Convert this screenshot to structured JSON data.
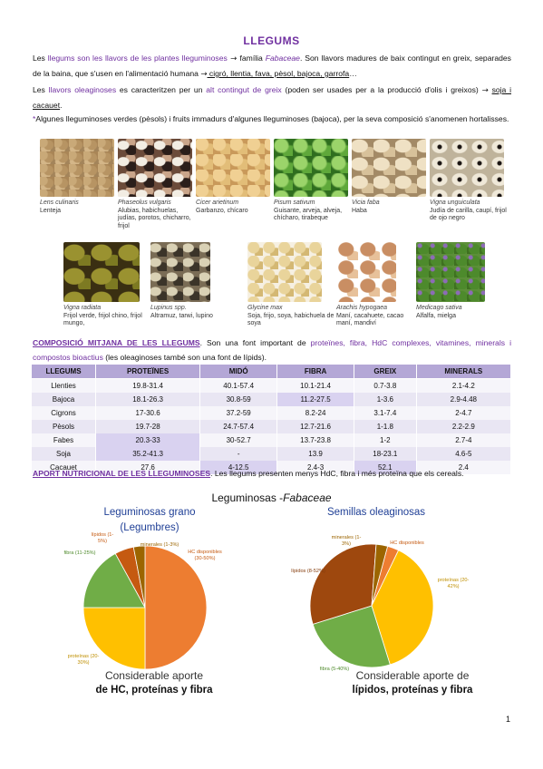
{
  "title": "LLEGUMS",
  "intro": {
    "p1_a": "Les ",
    "p1_b": "llegums son les llavors de les plantes lleguminoses",
    "p1_arrow": " → ",
    "p1_c": "família ",
    "p1_d": "Fabaceae",
    "p1_e": ". Son llavors madures de baix contingut en greix, separades de la baina, que s'usen en l'alimentació humana ",
    "p1_f": "→",
    "p1_g": " cigró, llentia, fava, pèsol, bajoca, garrofa",
    "p1_h": "…",
    "p2_a": "Les ",
    "p2_b": "llavors oleaginoses",
    "p2_c": " es caracteritzen per un ",
    "p2_d": "alt contingut de greix",
    "p2_e": " (poden ser usades per a la producció d'olis i greixos) ",
    "p2_f": "→",
    "p2_g": "soja i cacauet",
    "p2_h": ".",
    "p3_a": "*",
    "p3_b": "Algunes lleguminoses verdes (pèsols) i fruits immadurs d'algunes lleguminoses (bajoca), per la seva composició s'anomenen hortalisses."
  },
  "legumes_row1": [
    {
      "sci": "Lens culinaris",
      "common": "Lenteja",
      "icon": "lentil-image"
    },
    {
      "sci": "Phaseolus vulgaris",
      "common": "Alubias, habichuelas, judías, porotos, chicharro, frijol",
      "icon": "bean-image"
    },
    {
      "sci": "Cicer arietinum",
      "common": "Garbanzo, chícaro",
      "icon": "chickpea-image"
    },
    {
      "sci": "Pisum sativum",
      "common": "Guisante, arveja, alveja, chícharo, tirabeque",
      "icon": "pea-image"
    },
    {
      "sci": "Vicia faba",
      "common": "Haba",
      "icon": "broad-bean-image"
    },
    {
      "sci": "Vigna unguiculata",
      "common": "Judía de carilla, caupí, frijol de ojo negro",
      "icon": "blackeyed-pea-image"
    }
  ],
  "legumes_row2": [
    {
      "sci": "Vigna radiata",
      "common": "Frijol verde, frijol chino, frijol mungo,",
      "icon": "mung-bean-image"
    },
    {
      "sci": "Lupinus spp.",
      "common": "Altramuz, tarwi, lupino",
      "icon": "lupin-image"
    },
    {
      "sci": "Glycine max",
      "common": "Soja, frijo, soya, habichuela de soya",
      "icon": "soybean-image"
    },
    {
      "sci": "Arachis hypogaea",
      "common": "Maní, cacahuete, cacao maní, mandiví",
      "icon": "peanut-image"
    },
    {
      "sci": "Medicago sativa",
      "common": "Alfalfa, mielga",
      "icon": "alfalfa-image"
    }
  ],
  "composition": {
    "heading": "COMPOSICIÓ MITJANA DE LES LLEGUMS",
    "text_a": ". Son una font important de ",
    "text_b": "proteïnes, fibra, HdC complexes, vitamines, minerals i compostos bioactius",
    "text_c": " (les oleaginoses també son una font de lípids)",
    "text_d": "."
  },
  "table": {
    "headers": [
      "LLEGUMS",
      "PROTEÏNES",
      "MIDÓ",
      "FIBRA",
      "GREIX",
      "MINERALS"
    ],
    "rows": [
      [
        "Llenties",
        "19.8-31.4",
        "40.1-57.4",
        "10.1-21.4",
        "0.7-3.8",
        "2.1-4.2"
      ],
      [
        "Bajoca",
        "18.1-26.3",
        "30.8-59",
        "11.2-27.5",
        "1-3.6",
        "2.9-4.48"
      ],
      [
        "Cigrons",
        "17-30.6",
        "37.2-59",
        "8.2-24",
        "3.1-7.4",
        "2-4.7"
      ],
      [
        "Pèsols",
        "19.7-28",
        "24.7-57.4",
        "12.7-21.6",
        "1-1.8",
        "2.2-2.9"
      ],
      [
        "Fabes",
        "20.3-33",
        "30-52.7",
        "13.7-23.8",
        "1-2",
        "2.7-4"
      ],
      [
        "Soja",
        "35.2-41.3",
        "-",
        "13.9",
        "18-23.1",
        "4.6-5"
      ],
      [
        "Cacauet",
        "27.6",
        "4-12.5",
        "2.4-3",
        "52.1",
        "2.4"
      ]
    ]
  },
  "aport": {
    "heading": "APORT NUTRICIONAL DE LES LLEGUMINOSES",
    "text": ". Les llegums presenten menys HdC, fibra i més proteïna que els cereals."
  },
  "chart_data": [
    {
      "type": "pie",
      "title": "Leguminosas grano (Legumbres)",
      "categories": [
        "HC disponibles",
        "proteínas",
        "fibra",
        "lípidos",
        "minerales"
      ],
      "labels": [
        "HC disponibles (30-50%)",
        "proteínas (20-30%)",
        "fibra (11-25%)",
        "lípidos (1-5%)",
        "minerales (1-3%)"
      ],
      "values": [
        50,
        25,
        17,
        5,
        3
      ],
      "colors": [
        "#ed7d31",
        "#ffc000",
        "#70ad47",
        "#c55a11",
        "#9c6500"
      ],
      "caption_a": "Considerable aporte",
      "caption_b": "de HC, proteínas y fibra"
    },
    {
      "type": "pie",
      "title": "Semillas oleaginosas",
      "categories": [
        "HC disponibles",
        "proteínas",
        "fibra",
        "lípidos",
        "minerales"
      ],
      "labels": [
        "HC disponibles",
        "proteínas (20-42%)",
        "fibra (5-40%)",
        "lípidos (8-52%)",
        "minerales (1-3%)"
      ],
      "values": [
        3,
        38,
        25,
        31,
        3
      ],
      "colors": [
        "#ed7d31",
        "#ffc000",
        "#70ad47",
        "#9e480e",
        "#9c6500"
      ],
      "caption_a": "Considerable aporte de",
      "caption_b": "lípidos, proteínas y fibra"
    }
  ],
  "charts_heading": {
    "a": "Leguminosas -",
    "b": "Fabaceae"
  },
  "page_number": "1"
}
